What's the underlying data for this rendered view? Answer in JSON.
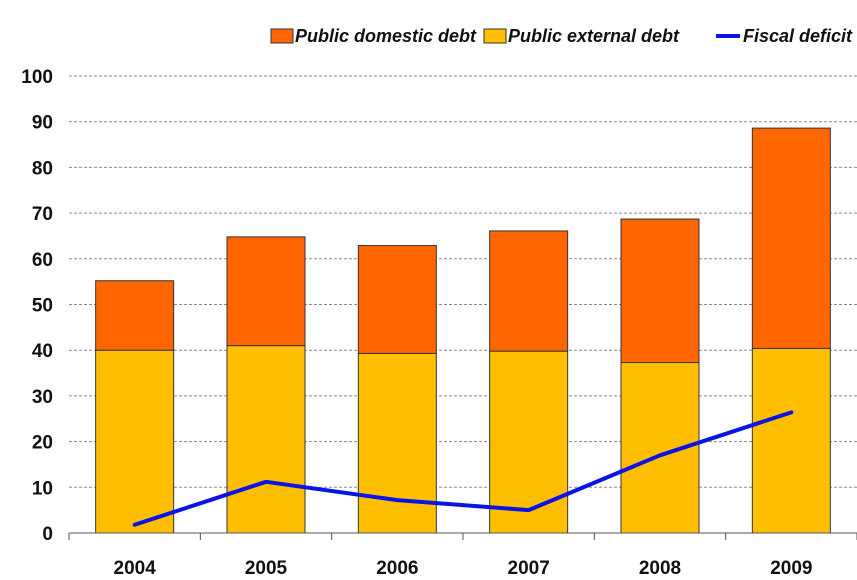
{
  "chart_data": {
    "type": "bar",
    "stacked": true,
    "title": "",
    "xlabel": "",
    "ylabel": "",
    "categories": [
      "2004",
      "2005",
      "2006",
      "2007",
      "2008",
      "2009"
    ],
    "series": [
      {
        "name": "Public external debt",
        "kind": "bar",
        "color": "#FFBF00",
        "values": [
          40,
          41,
          39.3,
          39.8,
          37.3,
          40.4
        ]
      },
      {
        "name": "Public domestic debt",
        "kind": "bar",
        "color": "#FF6600",
        "values": [
          15.2,
          23.8,
          23.6,
          26.3,
          31.4,
          48.2
        ]
      },
      {
        "name": "Fiscal deficit",
        "kind": "line",
        "color": "#0A14E6",
        "values": [
          1.8,
          11.2,
          7.2,
          5.0,
          17.0,
          26.4
        ]
      }
    ],
    "legend": {
      "position": "top-right",
      "entries": [
        "Public domestic debt",
        "Public external debt",
        "Fiscal deficit"
      ]
    },
    "ylim": [
      0,
      100
    ],
    "yticks": [
      "0",
      "10",
      "20",
      "30",
      "40",
      "50",
      "60",
      "70",
      "80",
      "90",
      "100"
    ],
    "grid": true
  }
}
